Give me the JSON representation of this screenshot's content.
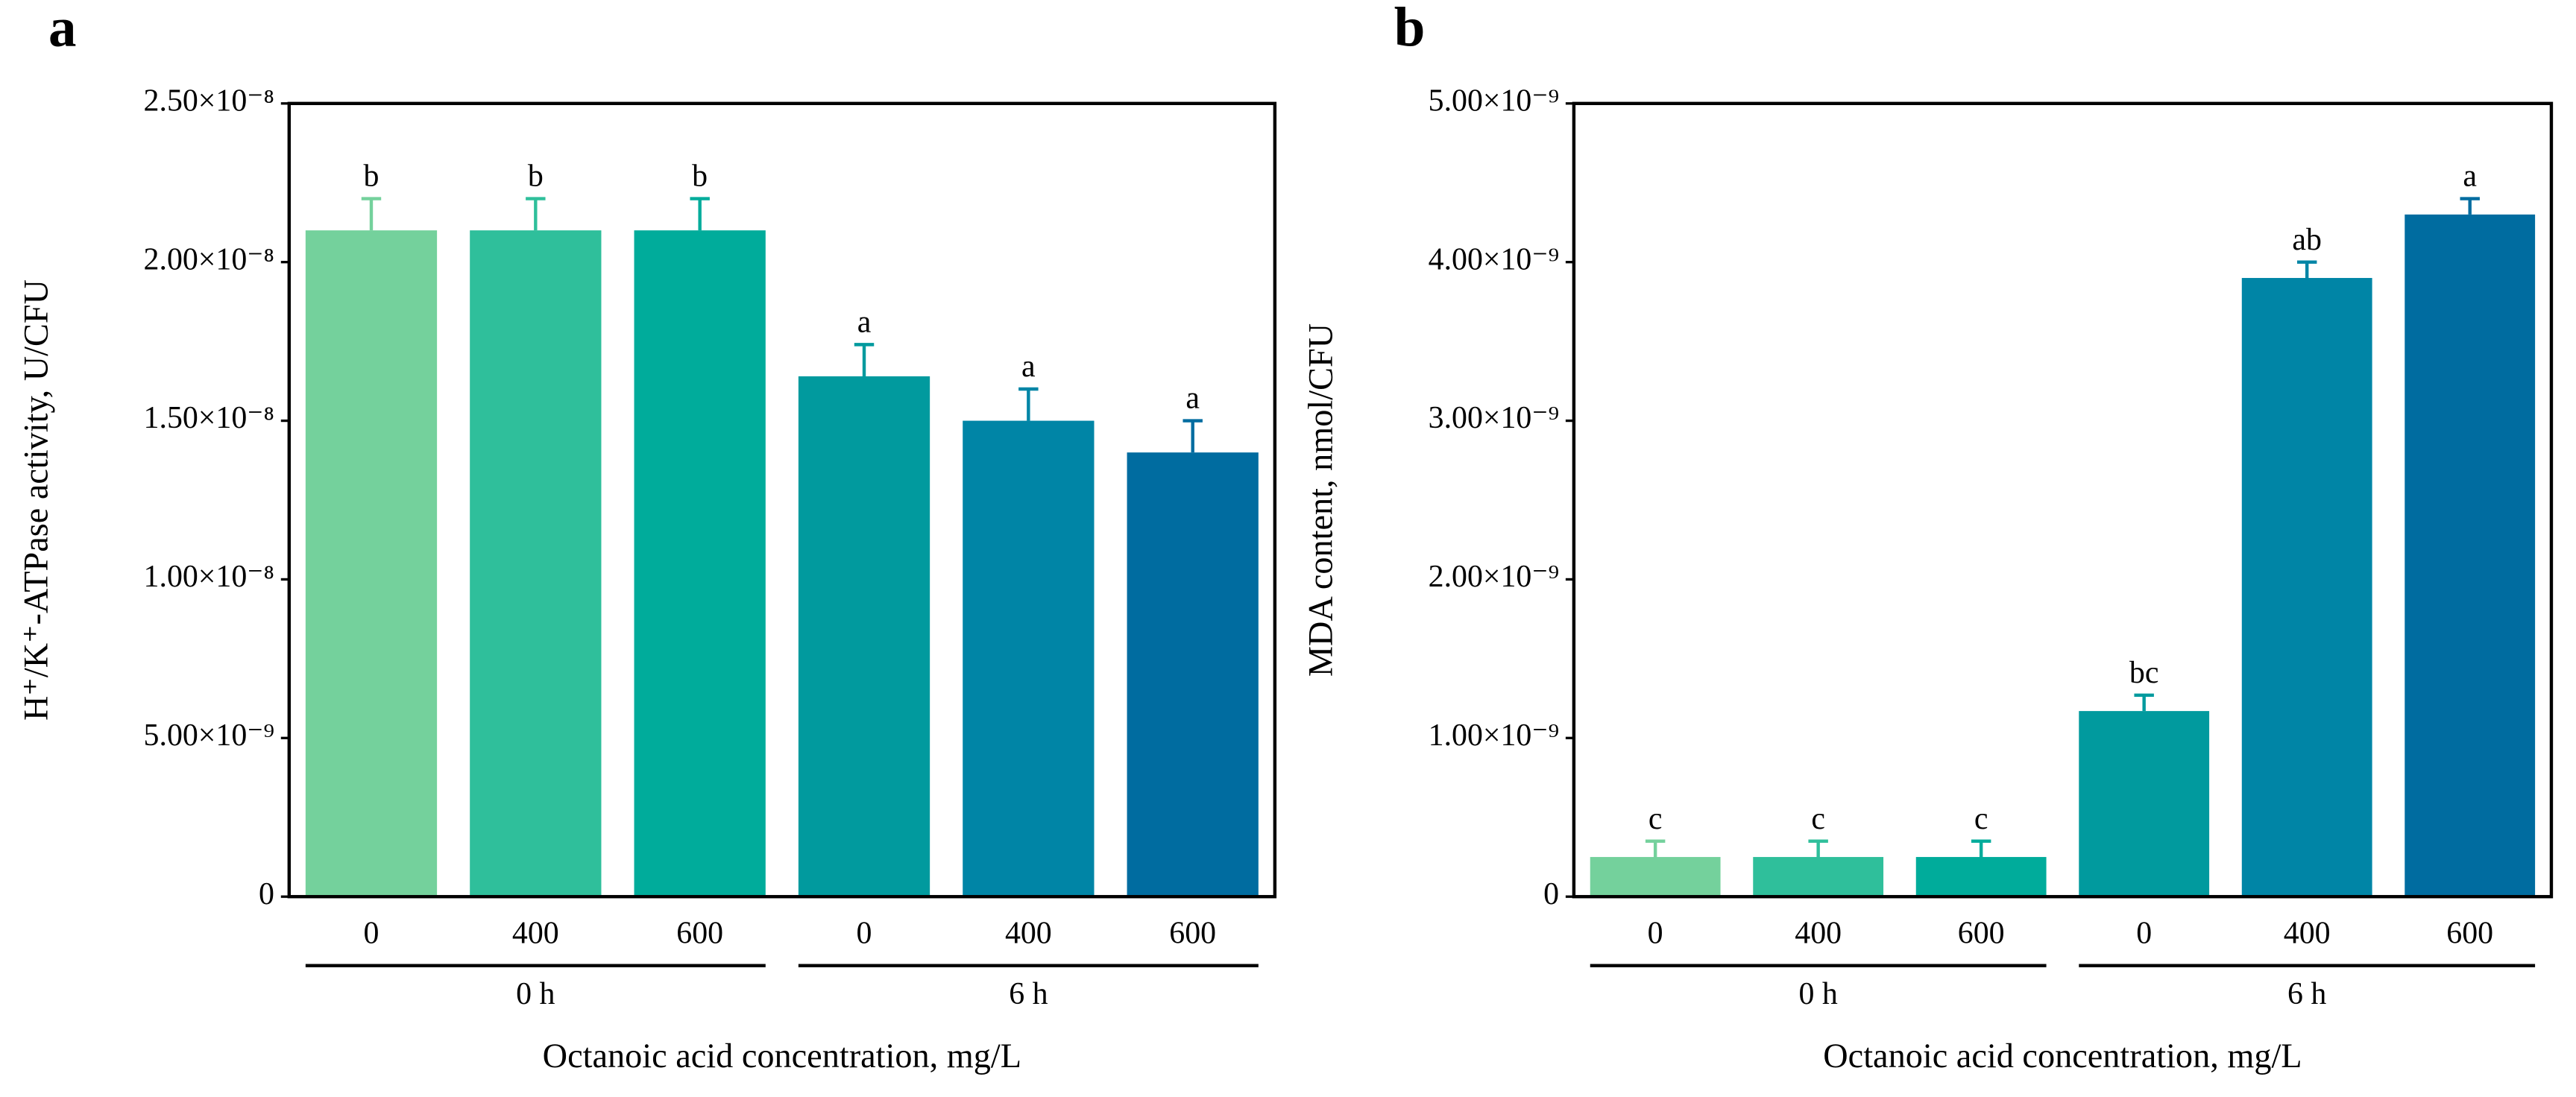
{
  "chart_data": [
    {
      "type": "bar",
      "panel": "a",
      "ylabel": "H⁺/K⁺-ATPase activity, U/CFU",
      "xlabel": "Octanoic acid concentration, mg/L",
      "categories": [
        "0",
        "400",
        "600",
        "0",
        "400",
        "600"
      ],
      "group_labels": [
        "0 h",
        "6 h"
      ],
      "values": [
        2.1e-08,
        2.1e-08,
        2.1e-08,
        1.64e-08,
        1.5e-08,
        1.4e-08
      ],
      "errors": [
        1e-09,
        1e-09,
        1e-09,
        1e-09,
        1e-09,
        1e-09
      ],
      "letters": [
        "b",
        "b",
        "b",
        "a",
        "a",
        "a"
      ],
      "colors": [
        "#74d19c",
        "#2fbf9b",
        "#00ac9b",
        "#019a9e",
        "#0085a6",
        "#006ca0"
      ],
      "ylim": [
        0,
        2.5e-08
      ],
      "yticks": [
        0,
        {
          "value": 5e-09,
          "label": "5.00×10⁻⁹"
        },
        {
          "value": 1e-08,
          "label": "1.00×10⁻⁸"
        },
        {
          "value": 1.5e-08,
          "label": "1.50×10⁻⁸"
        },
        {
          "value": 2e-08,
          "label": "2.00×10⁻⁸"
        },
        {
          "value": 2.5e-08,
          "label": "2.50×10⁻⁸"
        }
      ]
    },
    {
      "type": "bar",
      "panel": "b",
      "ylabel": "MDA content, nmol/CFU",
      "xlabel": "Octanoic acid concentration, mg/L",
      "categories": [
        "0",
        "400",
        "600",
        "0",
        "400",
        "600"
      ],
      "group_labels": [
        "0 h",
        "6 h"
      ],
      "values": [
        2.5e-10,
        2.5e-10,
        2.5e-10,
        1.17e-09,
        3.9e-09,
        4.3e-09
      ],
      "errors": [
        1e-10,
        1e-10,
        1e-10,
        1e-10,
        1e-10,
        1e-10
      ],
      "letters": [
        "c",
        "c",
        "c",
        "bc",
        "ab",
        "a"
      ],
      "colors": [
        "#74d19c",
        "#2fbf9b",
        "#00ac9b",
        "#019a9e",
        "#0085a6",
        "#006ca0"
      ],
      "ylim": [
        0,
        5e-09
      ],
      "yticks": [
        0,
        {
          "value": 1e-09,
          "label": "1.00×10⁻⁹"
        },
        {
          "value": 2e-09,
          "label": "2.00×10⁻⁹"
        },
        {
          "value": 3e-09,
          "label": "3.00×10⁻⁹"
        },
        {
          "value": 4e-09,
          "label": "4.00×10⁻⁹"
        },
        {
          "value": 5e-09,
          "label": "5.00×10⁻⁹"
        }
      ]
    }
  ]
}
